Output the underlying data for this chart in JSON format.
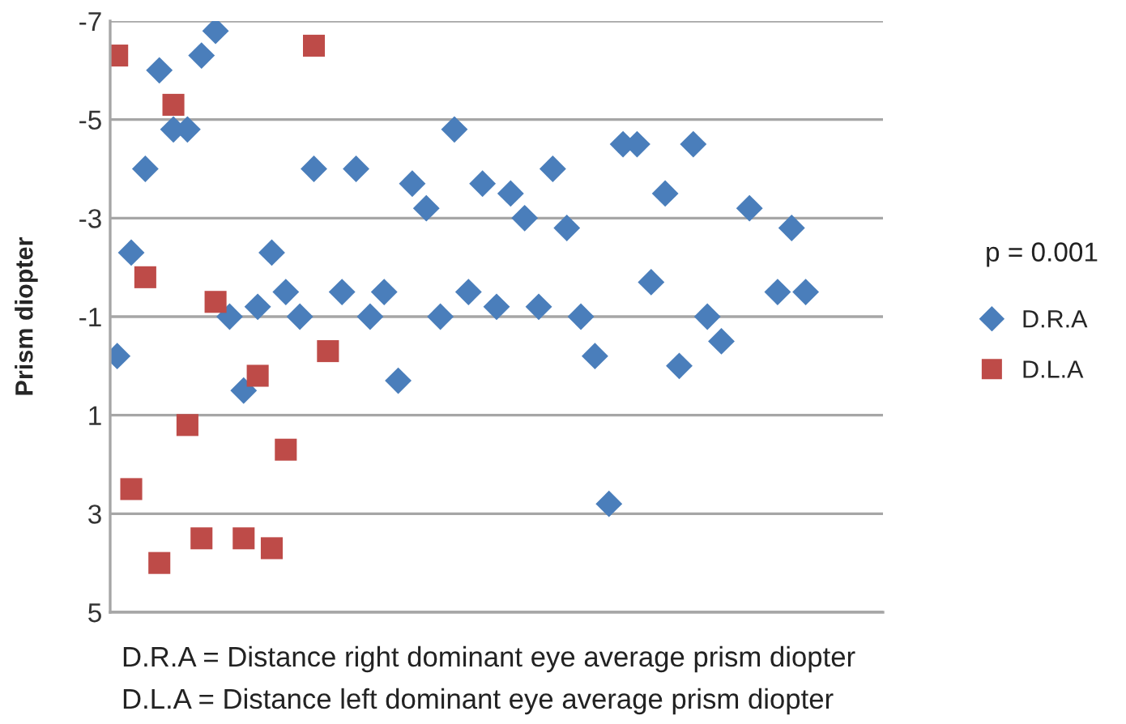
{
  "chart_data": {
    "type": "scatter",
    "ylabel": "Prism diopter",
    "categories": [
      null,
      null,
      null,
      null,
      null,
      null,
      null,
      null,
      null,
      null,
      null,
      null,
      null,
      null,
      null,
      null,
      null,
      null,
      null,
      null,
      null,
      null,
      null,
      null,
      null,
      null,
      null,
      null,
      null,
      null,
      null,
      null,
      null,
      null,
      null,
      null,
      null,
      null,
      null,
      null,
      null,
      null,
      null,
      null,
      null,
      null,
      null,
      null,
      null,
      null,
      null,
      null,
      null,
      null,
      null
    ],
    "series": [
      {
        "name": "D.R.A",
        "color": "#4a7ebb",
        "marker": "diamond",
        "values": [
          -0.2,
          -2.3,
          -4.0,
          -6.0,
          -4.8,
          -4.8,
          -6.3,
          -6.8,
          -1.0,
          0.5,
          -1.2,
          -2.3,
          -1.5,
          -1.0,
          -4.0,
          null,
          -1.5,
          -4.0,
          -1.0,
          -1.5,
          0.3,
          -3.7,
          -3.2,
          -1.0,
          -4.8,
          -1.5,
          -3.7,
          -1.2,
          -3.5,
          -3.0,
          -1.2,
          -4.0,
          -2.8,
          -1.0,
          -0.2,
          2.8,
          -4.5,
          -4.5,
          -1.7,
          -3.5,
          0.0,
          -4.5,
          -1.0,
          -0.5,
          null,
          -3.2,
          null,
          -1.5,
          -2.8,
          -1.5,
          null,
          null,
          null,
          null,
          null
        ]
      },
      {
        "name": "D.L.A",
        "color": "#be4b48",
        "marker": "square",
        "values": [
          -6.3,
          2.5,
          -1.8,
          4.0,
          -5.3,
          1.2,
          3.5,
          -1.3,
          null,
          3.5,
          0.2,
          3.7,
          1.7,
          null,
          -6.5,
          -0.3,
          null,
          null,
          null,
          null,
          null,
          null,
          null,
          null,
          null,
          null,
          null,
          null,
          null,
          null,
          null,
          null,
          null,
          null,
          null,
          null,
          null,
          null,
          null,
          null,
          null,
          null,
          null,
          null,
          null,
          null,
          null,
          null,
          null,
          null,
          null,
          null,
          null,
          null,
          null
        ]
      }
    ],
    "ylim": [
      5,
      -7
    ],
    "yticks": [
      -7,
      -5,
      -3,
      -1,
      1,
      3,
      5
    ],
    "grid": "y",
    "legend": "right",
    "tick_labels": "y",
    "annotations": [
      "p = 0.001",
      "D.R.A = Distance right dominant eye average prism diopter",
      "D.L.A = Distance left dominant eye average prism diopter"
    ]
  }
}
